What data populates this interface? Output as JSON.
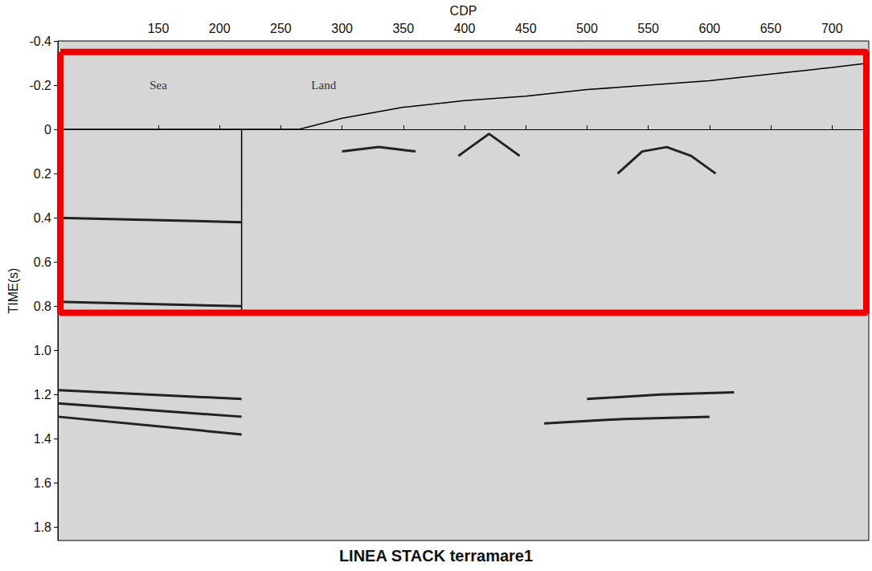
{
  "chart_data": {
    "type": "line",
    "title": "LINEA STACK terramare1",
    "x_label": "CDP",
    "y_label": "TIME(s)",
    "xlim": [
      68,
      730
    ],
    "xticks": [
      150,
      200,
      250,
      300,
      350,
      400,
      450,
      500,
      550,
      600,
      650,
      700
    ],
    "ylim": [
      -0.4,
      1.86
    ],
    "yticks": [
      -0.4,
      -0.2,
      0,
      0.2,
      0.4,
      0.6,
      0.8,
      {
        "value": 1,
        "label": "1.0"
      },
      1.2,
      1.4,
      1.6,
      1.8
    ],
    "y_inverted": true,
    "grid": false,
    "tick_labels": true,
    "annotations": [
      {
        "text": "Sea",
        "x": 150,
        "y": -0.2
      },
      {
        "text": "Land",
        "x": 285,
        "y": -0.2
      }
    ],
    "series": [
      {
        "color": "#000000",
        "line_style": "solid",
        "x": [
          68,
          265,
          300,
          350,
          400,
          450,
          500,
          550,
          600,
          650,
          700,
          730
        ],
        "values": [
          0,
          0,
          -0.05,
          -0.1,
          -0.13,
          -0.15,
          -0.18,
          -0.2,
          -0.22,
          -0.25,
          -0.28,
          -0.3
        ]
      },
      {
        "color": "#000000",
        "line_style": "solid",
        "x": [
          218,
          218
        ],
        "values": [
          0,
          0.83
        ]
      },
      {
        "color": "#222222",
        "line_style": "solid",
        "x": [
          68,
          218
        ],
        "values": [
          0.4,
          0.42
        ]
      },
      {
        "color": "#222222",
        "line_style": "solid",
        "x": [
          68,
          218
        ],
        "values": [
          0.78,
          0.8
        ]
      },
      {
        "color": "#222222",
        "line_style": "solid",
        "x": [
          68,
          218
        ],
        "values": [
          1.18,
          1.22
        ]
      },
      {
        "color": "#222222",
        "line_style": "solid",
        "x": [
          68,
          218
        ],
        "values": [
          1.24,
          1.3
        ]
      },
      {
        "color": "#222222",
        "line_style": "solid",
        "x": [
          68,
          218
        ],
        "values": [
          1.3,
          1.38
        ]
      },
      {
        "color": "#222222",
        "line_style": "solid",
        "x": [
          300,
          330,
          360
        ],
        "values": [
          0.1,
          0.08,
          0.1
        ]
      },
      {
        "color": "#222222",
        "line_style": "solid",
        "x": [
          395,
          420,
          445
        ],
        "values": [
          0.12,
          0.02,
          0.12
        ]
      },
      {
        "color": "#222222",
        "line_style": "solid",
        "x": [
          525,
          545,
          565,
          585,
          605
        ],
        "values": [
          0.2,
          0.1,
          0.08,
          0.12,
          0.2
        ]
      },
      {
        "color": "#222222",
        "line_style": "solid",
        "x": [
          465,
          530,
          600
        ],
        "values": [
          1.33,
          1.31,
          1.3
        ]
      },
      {
        "color": "#222222",
        "line_style": "solid",
        "x": [
          500,
          560,
          620
        ],
        "values": [
          1.22,
          1.2,
          1.19
        ]
      },
      {
        "color": "#ee0000",
        "line_style": "solid",
        "x": [
          70,
          728,
          728,
          70,
          70
        ],
        "values": [
          -0.35,
          -0.35,
          0.83,
          0.83,
          -0.35
        ]
      }
    ]
  }
}
